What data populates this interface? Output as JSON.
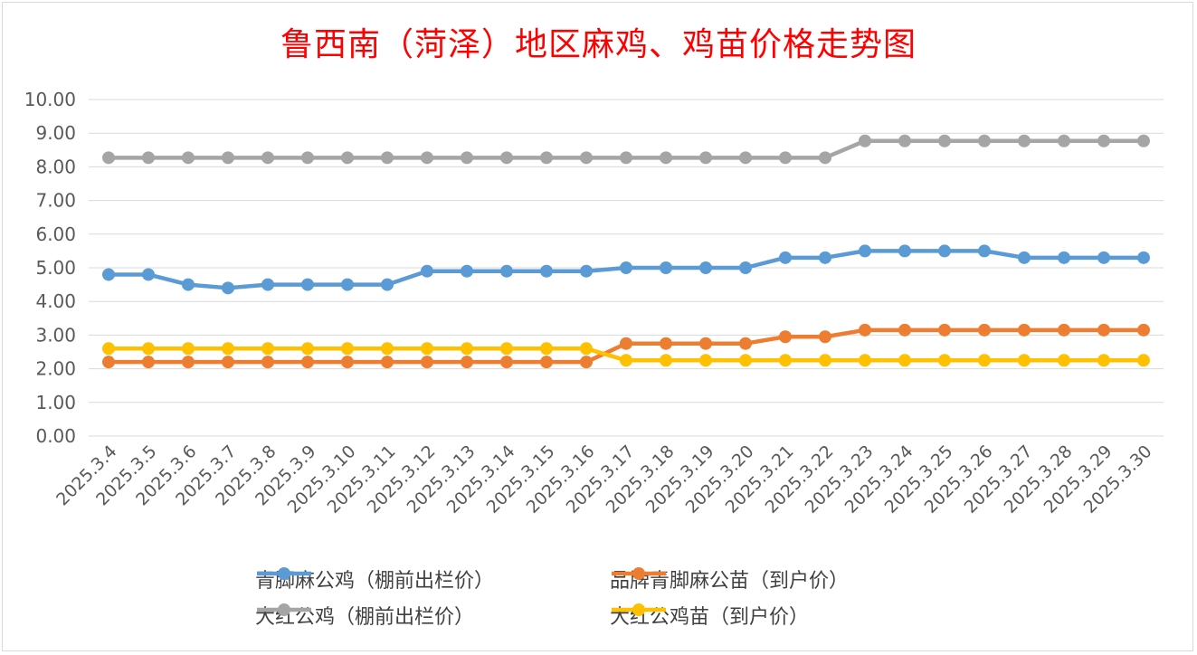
{
  "chart_data": {
    "type": "line",
    "title": "鲁西南（菏泽）地区麻鸡、鸡苗价格走势图",
    "categories": [
      "2025.3.4",
      "2025.3.5",
      "2025.3.6",
      "2025.3.7",
      "2025.3.8",
      "2025.3.9",
      "2025.3.10",
      "2025.3.11",
      "2025.3.12",
      "2025.3.13",
      "2025.3.14",
      "2025.3.15",
      "2025.3.16",
      "2025.3.17",
      "2025.3.18",
      "2025.3.19",
      "2025.3.20",
      "2025.3.21",
      "2025.3.22",
      "2025.3.23",
      "2025.3.24",
      "2025.3.25",
      "2025.3.26",
      "2025.3.27",
      "2025.3.28",
      "2025.3.29",
      "2025.3.30"
    ],
    "ylim": [
      0,
      10
    ],
    "ytick_labels": [
      "0.00",
      "1.00",
      "2.00",
      "3.00",
      "4.00",
      "5.00",
      "6.00",
      "7.00",
      "8.00",
      "9.00",
      "10.00"
    ],
    "grid": true,
    "legend_position": "bottom",
    "series": [
      {
        "name": "青脚麻公鸡（棚前出栏价）",
        "color": "#5b9bd5",
        "values": [
          4.8,
          4.8,
          4.5,
          4.4,
          4.5,
          4.5,
          4.5,
          4.5,
          4.9,
          4.9,
          4.9,
          4.9,
          4.9,
          5.0,
          5.0,
          5.0,
          5.0,
          5.3,
          5.3,
          5.5,
          5.5,
          5.5,
          5.5,
          5.3,
          5.3,
          5.3,
          5.3
        ]
      },
      {
        "name": "品牌青脚麻公苗（到户价）",
        "color": "#ed7d31",
        "values": [
          2.2,
          2.2,
          2.2,
          2.2,
          2.2,
          2.2,
          2.2,
          2.2,
          2.2,
          2.2,
          2.2,
          2.2,
          2.2,
          2.75,
          2.75,
          2.75,
          2.75,
          2.95,
          2.95,
          3.15,
          3.15,
          3.15,
          3.15,
          3.15,
          3.15,
          3.15,
          3.15
        ]
      },
      {
        "name": "大红公鸡（棚前出栏价）",
        "color": "#a5a5a5",
        "values": [
          8.27,
          8.27,
          8.27,
          8.27,
          8.27,
          8.27,
          8.27,
          8.27,
          8.27,
          8.27,
          8.27,
          8.27,
          8.27,
          8.27,
          8.27,
          8.27,
          8.27,
          8.27,
          8.27,
          8.77,
          8.77,
          8.77,
          8.77,
          8.77,
          8.77,
          8.77,
          8.77
        ]
      },
      {
        "name": "大红公鸡苗（到户价）",
        "color": "#ffc000",
        "values": [
          2.6,
          2.6,
          2.6,
          2.6,
          2.6,
          2.6,
          2.6,
          2.6,
          2.6,
          2.6,
          2.6,
          2.6,
          2.6,
          2.25,
          2.25,
          2.25,
          2.25,
          2.25,
          2.25,
          2.25,
          2.25,
          2.25,
          2.25,
          2.25,
          2.25,
          2.25,
          2.25
        ]
      }
    ]
  }
}
